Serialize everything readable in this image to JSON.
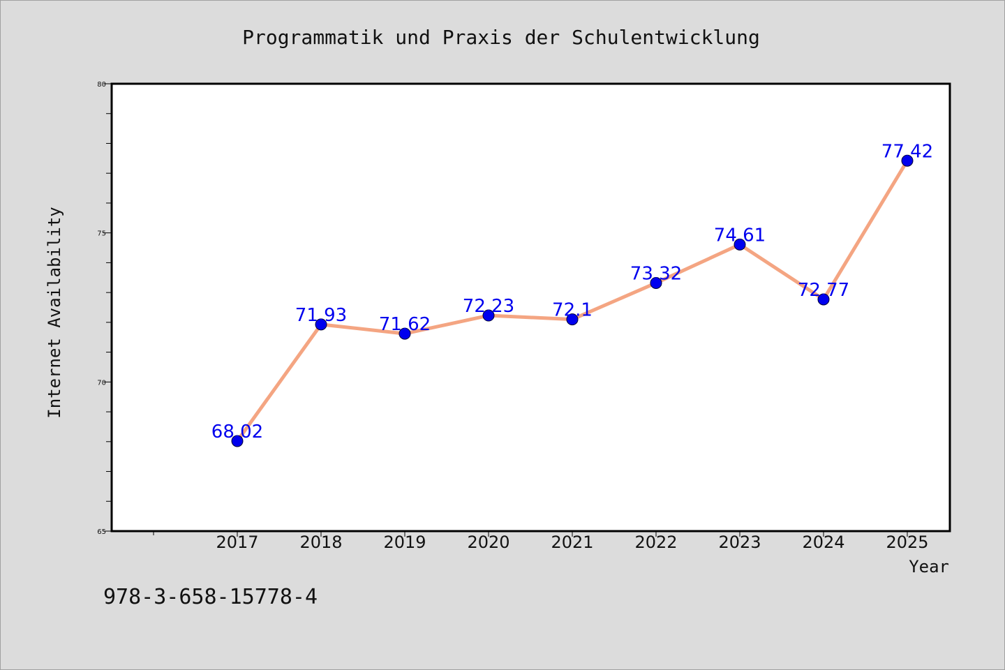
{
  "chart_data": {
    "type": "line",
    "title": "Programmatik und Praxis der Schulentwicklung",
    "xlabel": "Year",
    "ylabel": "Internet Availability",
    "x": [
      "2017",
      "2018",
      "2019",
      "2020",
      "2021",
      "2022",
      "2023",
      "2024",
      "2025"
    ],
    "series": [
      {
        "values": [
          68.02,
          71.93,
          71.62,
          72.23,
          72.1,
          73.32,
          74.61,
          72.77,
          77.42
        ],
        "labels": [
          "68.02",
          "71.93",
          "71.62",
          "72.23",
          "72.1",
          "73.32",
          "74.61",
          "72.77",
          "77.42"
        ]
      }
    ],
    "ylim": [
      65,
      80
    ],
    "y_ticks": [
      "65",
      "70",
      "75",
      "80"
    ],
    "grid": false,
    "legend": "none",
    "colors": {
      "line": "#f4a582",
      "marker": "#0000ee",
      "label": "#0000ee",
      "background": "#dcdcdc",
      "plot_background": "#ffffff"
    },
    "annotation": "978-3-658-15778-4"
  }
}
